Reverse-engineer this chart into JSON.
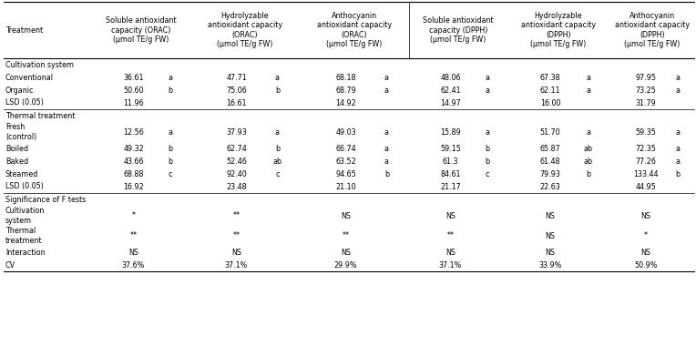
{
  "col_headers": [
    "Treatment",
    "Soluble antioxidant\ncapacity (ORAC)\n(μmol TE/g FW)",
    "Hydrolyzable\nantioxidant capacity\n(ORAC)\n(μmol TE/g FW)",
    "Anthocyanin\nantioxidant capacity\n(ORAC)\n(μmol TE/g FW)",
    "Soluble antioxidant\ncapacity (DPPH)\n(μmol TE/g FW)",
    "Hydrolyzable\nantioxidant capacity\n(DPPH)\n(μmol TE/g FW)",
    "Anthocyanin\nantioxidant capacity\n(DPPH)\n(μmol TE/g FW)"
  ],
  "section_cultivation": "Cultivation system",
  "section_thermal": "Thermal treatment",
  "section_significance": "Significance of F tests",
  "rows": [
    {
      "label": "Conventional",
      "vals": [
        "36.61",
        "a",
        "47.71",
        "a",
        "68.18",
        "a",
        "48.06",
        "a",
        "67.38",
        "a",
        "97.95",
        "a"
      ]
    },
    {
      "label": "Organic",
      "vals": [
        "50.60",
        "b",
        "75.06",
        "b",
        "68.79",
        "a",
        "62.41",
        "a",
        "62.11",
        "a",
        "73.25",
        "a"
      ]
    },
    {
      "label": "LSD (0.05)",
      "vals": [
        "11.96",
        "",
        "16.61",
        "",
        "14.92",
        "",
        "14.97",
        "",
        "16.00",
        "",
        "31.79",
        ""
      ]
    },
    {
      "label": "Fresh\n(control)",
      "vals": [
        "12.56",
        "a",
        "37.93",
        "a",
        "49.03",
        "a",
        "15.89",
        "a",
        "51.70",
        "a",
        "59.35",
        "a"
      ]
    },
    {
      "label": "Boiled",
      "vals": [
        "49.32",
        "b",
        "62.74",
        "b",
        "66.74",
        "a",
        "59.15",
        "b",
        "65.87",
        "ab",
        "72.35",
        "a"
      ]
    },
    {
      "label": "Baked",
      "vals": [
        "43.66",
        "b",
        "52.46",
        "ab",
        "63.52",
        "a",
        "61.3",
        "b",
        "61.48",
        "ab",
        "77.26",
        "a"
      ]
    },
    {
      "label": "Steamed",
      "vals": [
        "68.88",
        "c",
        "92.40",
        "c",
        "94.65",
        "b",
        "84.61",
        "c",
        "79.93",
        "b",
        "133.44",
        "b"
      ]
    },
    {
      "label": "LSD (0.05)",
      "vals": [
        "16.92",
        "",
        "23.48",
        "",
        "21.10",
        "",
        "21.17",
        "",
        "22.63",
        "",
        "44.95",
        ""
      ]
    },
    {
      "label": "Cultivation\nsystem",
      "vals": [
        "*",
        "",
        "**",
        "",
        "NS",
        "",
        "NS",
        "",
        "NS",
        "",
        "NS",
        ""
      ]
    },
    {
      "label": "Thermal\ntreatment",
      "vals": [
        "**",
        "",
        "**",
        "",
        "**",
        "",
        "**",
        "",
        "NS",
        "",
        "*",
        ""
      ]
    },
    {
      "label": "Interaction",
      "vals": [
        "NS",
        "",
        "NS",
        "",
        "NS",
        "",
        "NS",
        "",
        "NS",
        "",
        "NS",
        ""
      ]
    },
    {
      "label": "CV",
      "vals": [
        "37.6%",
        "",
        "37.1%",
        "",
        "29.9%",
        "",
        "37.1%",
        "",
        "33.9%",
        "",
        "50.9%",
        ""
      ]
    }
  ],
  "bg_color": "#ffffff",
  "text_color": "#000000",
  "font_size": 5.8,
  "header_font_size": 5.8
}
